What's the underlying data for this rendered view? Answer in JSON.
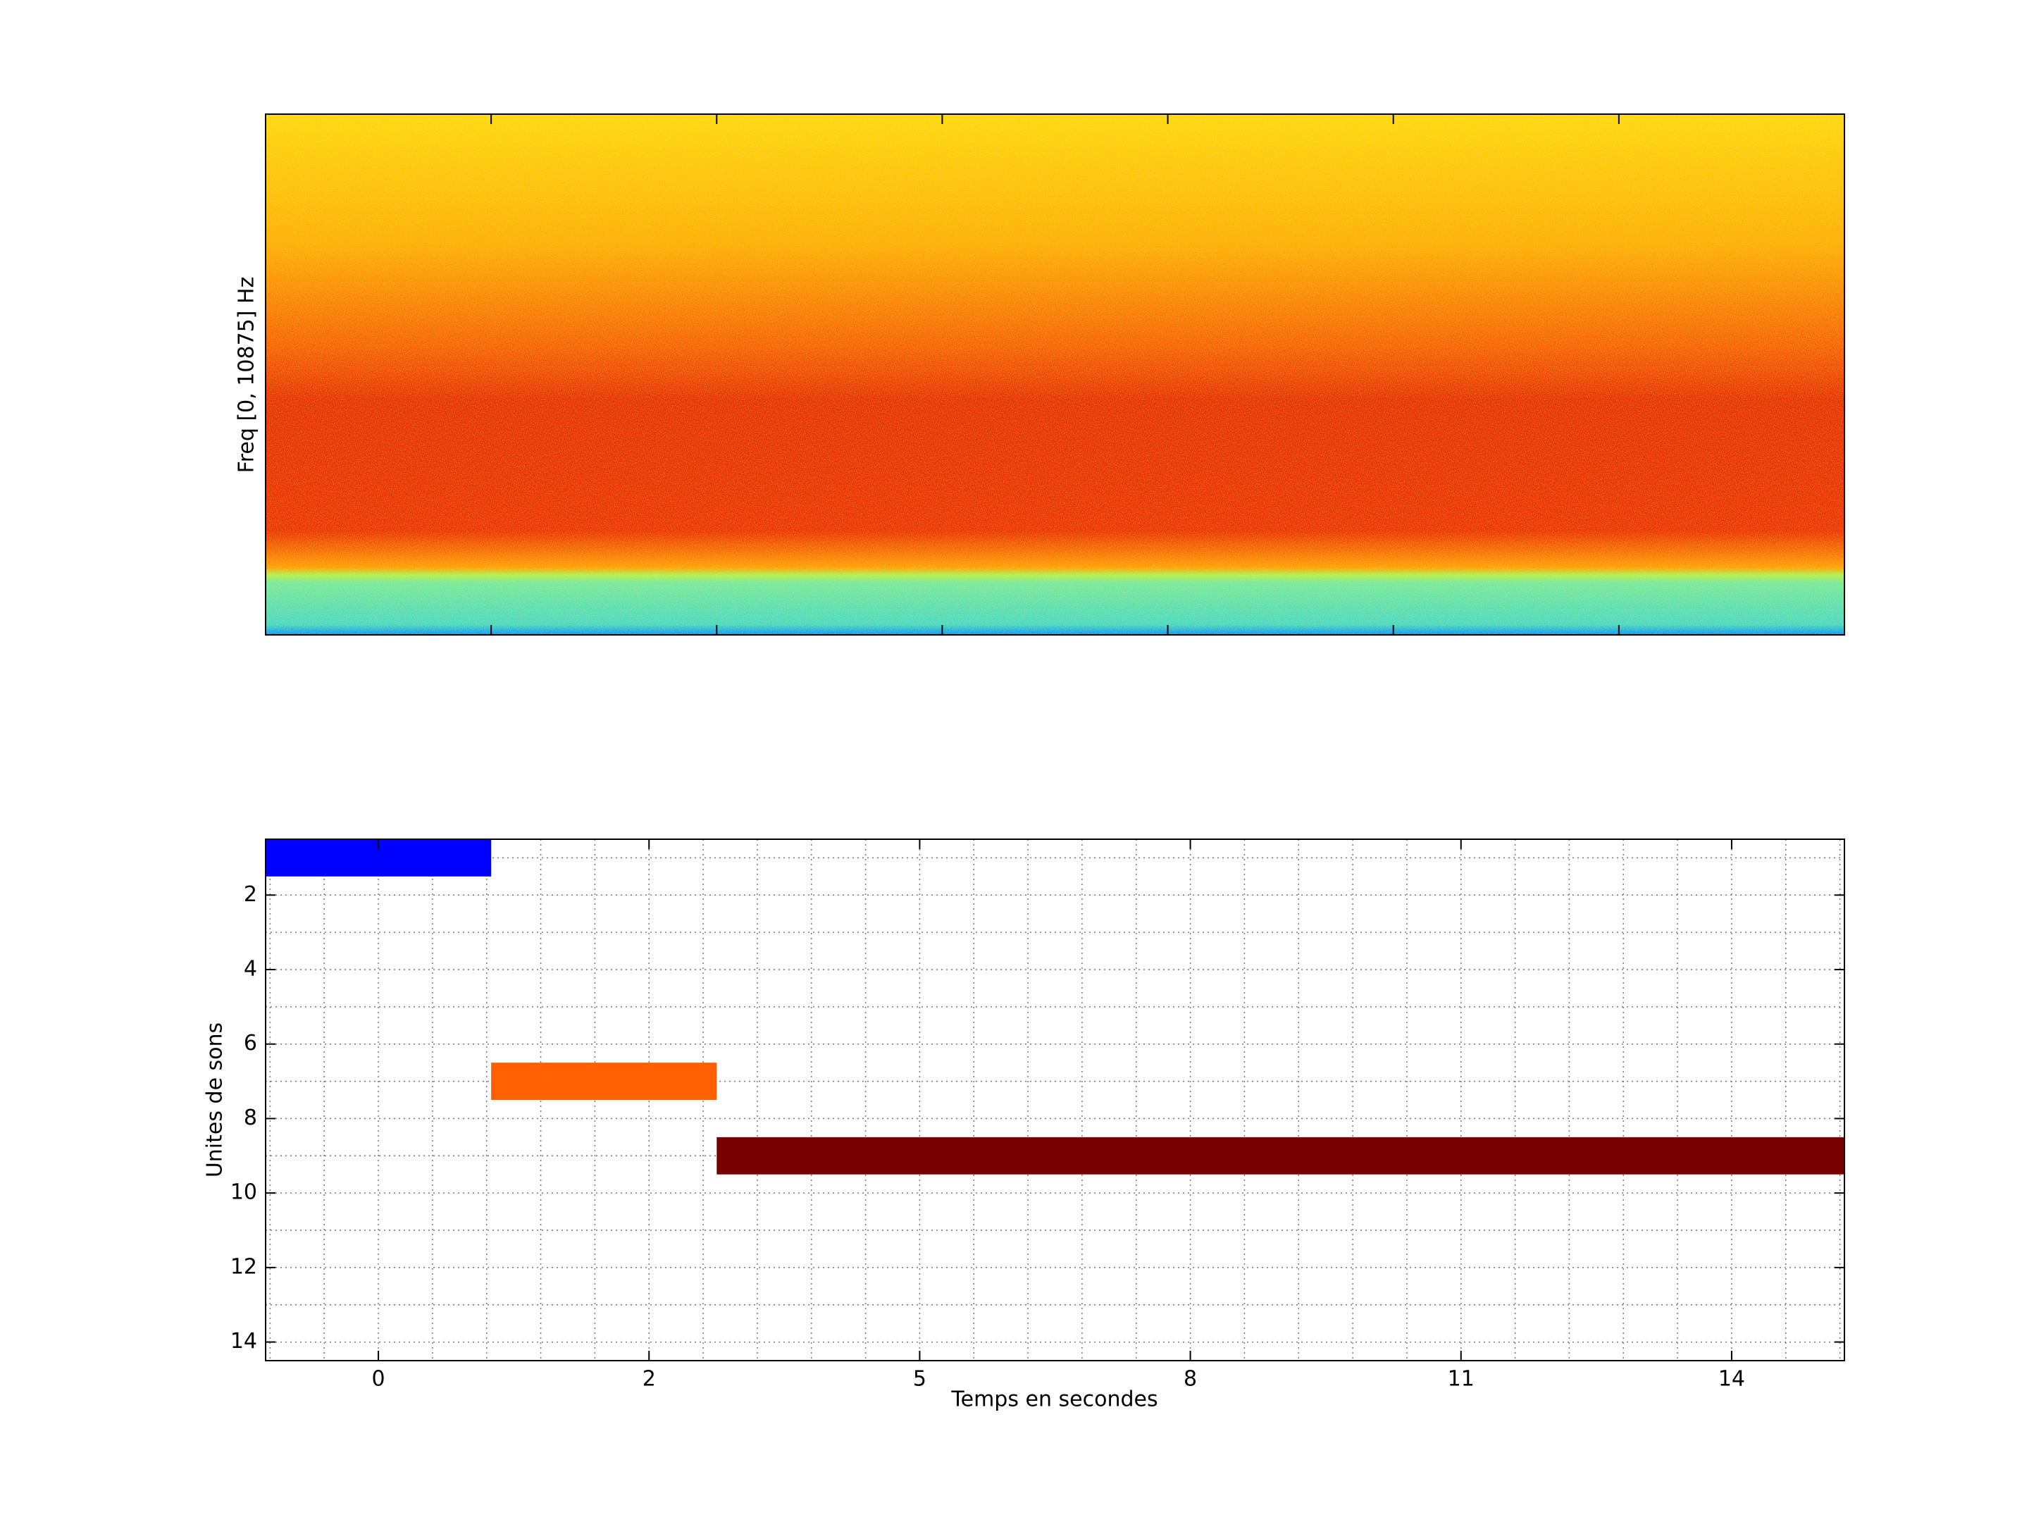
{
  "chart_data": [
    {
      "type": "spectrogram",
      "ylabel": "Freq [0, 10875] Hz",
      "xlim": [
        0.5,
        7.5
      ],
      "xticks": [
        1.5,
        2.5,
        3.5,
        4.5,
        5.5,
        6.5
      ]
    },
    {
      "type": "timeline",
      "ylabel": "Unites de sons",
      "xlabel": "Temps en secondes",
      "x_start": [
        0.5,
        1.5,
        2.5
      ],
      "x_end": [
        1.5,
        2.5,
        7.5
      ],
      "values": [
        1,
        7,
        9
      ],
      "colors": [
        "#0000ff",
        "#ff5f00",
        "#790000"
      ],
      "xlim": [
        0.5,
        7.5
      ],
      "xticks": [
        {
          "value": 1,
          "label": "0"
        },
        {
          "value": 2.2,
          "label": "2"
        },
        {
          "value": 3.4,
          "label": "5"
        },
        {
          "value": 4.6,
          "label": "8"
        },
        {
          "value": 5.8,
          "label": "11"
        },
        {
          "value": 7.0,
          "label": "14"
        }
      ],
      "xminorticks": [
        0.52,
        0.76,
        1.24,
        1.48,
        1.72,
        1.96,
        2.44,
        2.68,
        2.92,
        3.16,
        3.64,
        3.88,
        4.12,
        4.36,
        4.84,
        5.08,
        5.32,
        5.56,
        6.04,
        6.28,
        6.52,
        6.76,
        7.24,
        7.48
      ],
      "ylim": [
        0.5,
        14.5
      ],
      "yreverse": true,
      "yticks": [
        2,
        4,
        6,
        8,
        10,
        12,
        14
      ],
      "yminorticks": [
        1,
        3,
        5,
        7,
        9,
        11,
        13
      ],
      "grid": true
    }
  ]
}
